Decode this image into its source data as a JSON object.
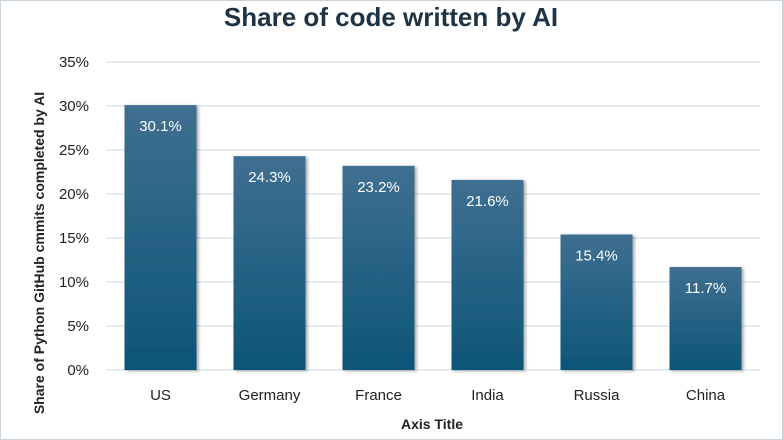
{
  "chart_data": {
    "type": "bar",
    "title": "Share of code written by AI",
    "xlabel": "Axis Title",
    "ylabel": "Share of Python GitHub cmmits completed by AI",
    "categories": [
      "US",
      "Germany",
      "France",
      "India",
      "Russia",
      "China"
    ],
    "values": [
      30.1,
      24.3,
      23.2,
      21.6,
      15.4,
      11.7
    ],
    "data_labels": [
      "30.1%",
      "24.3%",
      "23.2%",
      "21.6%",
      "15.4%",
      "11.7%"
    ],
    "ylim": [
      0,
      35
    ],
    "yticks": [
      0,
      5,
      10,
      15,
      20,
      25,
      30,
      35
    ],
    "ytick_labels": [
      "0%",
      "5%",
      "10%",
      "15%",
      "20%",
      "25%",
      "30%",
      "35%"
    ],
    "grid": true,
    "legend": "none",
    "colors": {
      "bar_top": "#3f6f91",
      "bar_bottom": "#0d5578",
      "grid": "#c9d9e8",
      "title": "#1f3346"
    }
  }
}
